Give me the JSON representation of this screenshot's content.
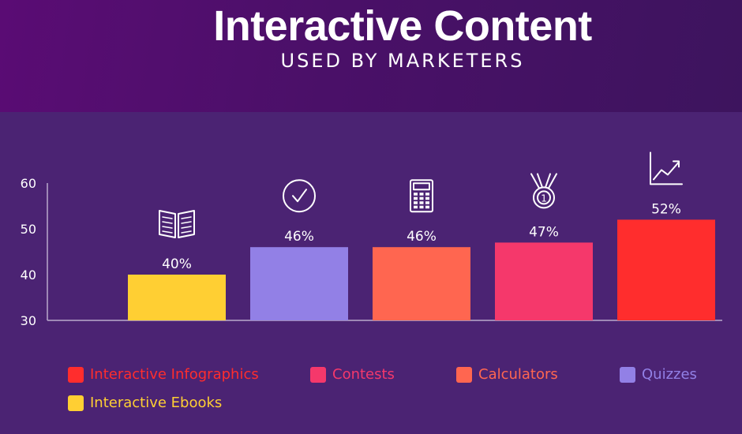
{
  "header": {
    "title": "Interactive Content",
    "subtitle": "USED BY MARKETERS"
  },
  "colors": {
    "header_bg": "#4a1068",
    "plot_bg": "#4b2373",
    "axis": "#b9a9cc",
    "infographics": "#ff2d2d",
    "contests": "#f5386b",
    "calculators": "#ff6650",
    "quizzes": "#9280e6",
    "ebooks": "#ffcf33"
  },
  "chart_data": {
    "type": "bar",
    "title": "Interactive Content",
    "subtitle": "USED BY MARKETERS",
    "categories": [
      "Interactive Ebooks",
      "Quizzes",
      "Calculators",
      "Contests",
      "Interactive Infographics"
    ],
    "values": [
      40,
      46,
      46,
      47,
      52
    ],
    "value_labels": [
      "40%",
      "46%",
      "46%",
      "47%",
      "52%"
    ],
    "bar_colors": [
      "#ffcf33",
      "#9280e6",
      "#ff6650",
      "#f5386b",
      "#ff2d2d"
    ],
    "icons": [
      "open-book-icon",
      "check-circle-icon",
      "calculator-icon",
      "medal-icon",
      "trend-chart-icon"
    ],
    "ylim": [
      30,
      60
    ],
    "yticks": [
      "30",
      "40",
      "50",
      "60"
    ],
    "xlabel": "",
    "ylabel": "",
    "grid": false,
    "legend_position": "bottom"
  },
  "legend": {
    "items": [
      {
        "label": "Interactive Infographics",
        "color": "#ff2d2d"
      },
      {
        "label": "Contests",
        "color": "#f5386b"
      },
      {
        "label": "Calculators",
        "color": "#ff6650"
      },
      {
        "label": "Quizzes",
        "color": "#9280e6"
      },
      {
        "label": "Interactive Ebooks",
        "color": "#ffcf33"
      }
    ]
  }
}
